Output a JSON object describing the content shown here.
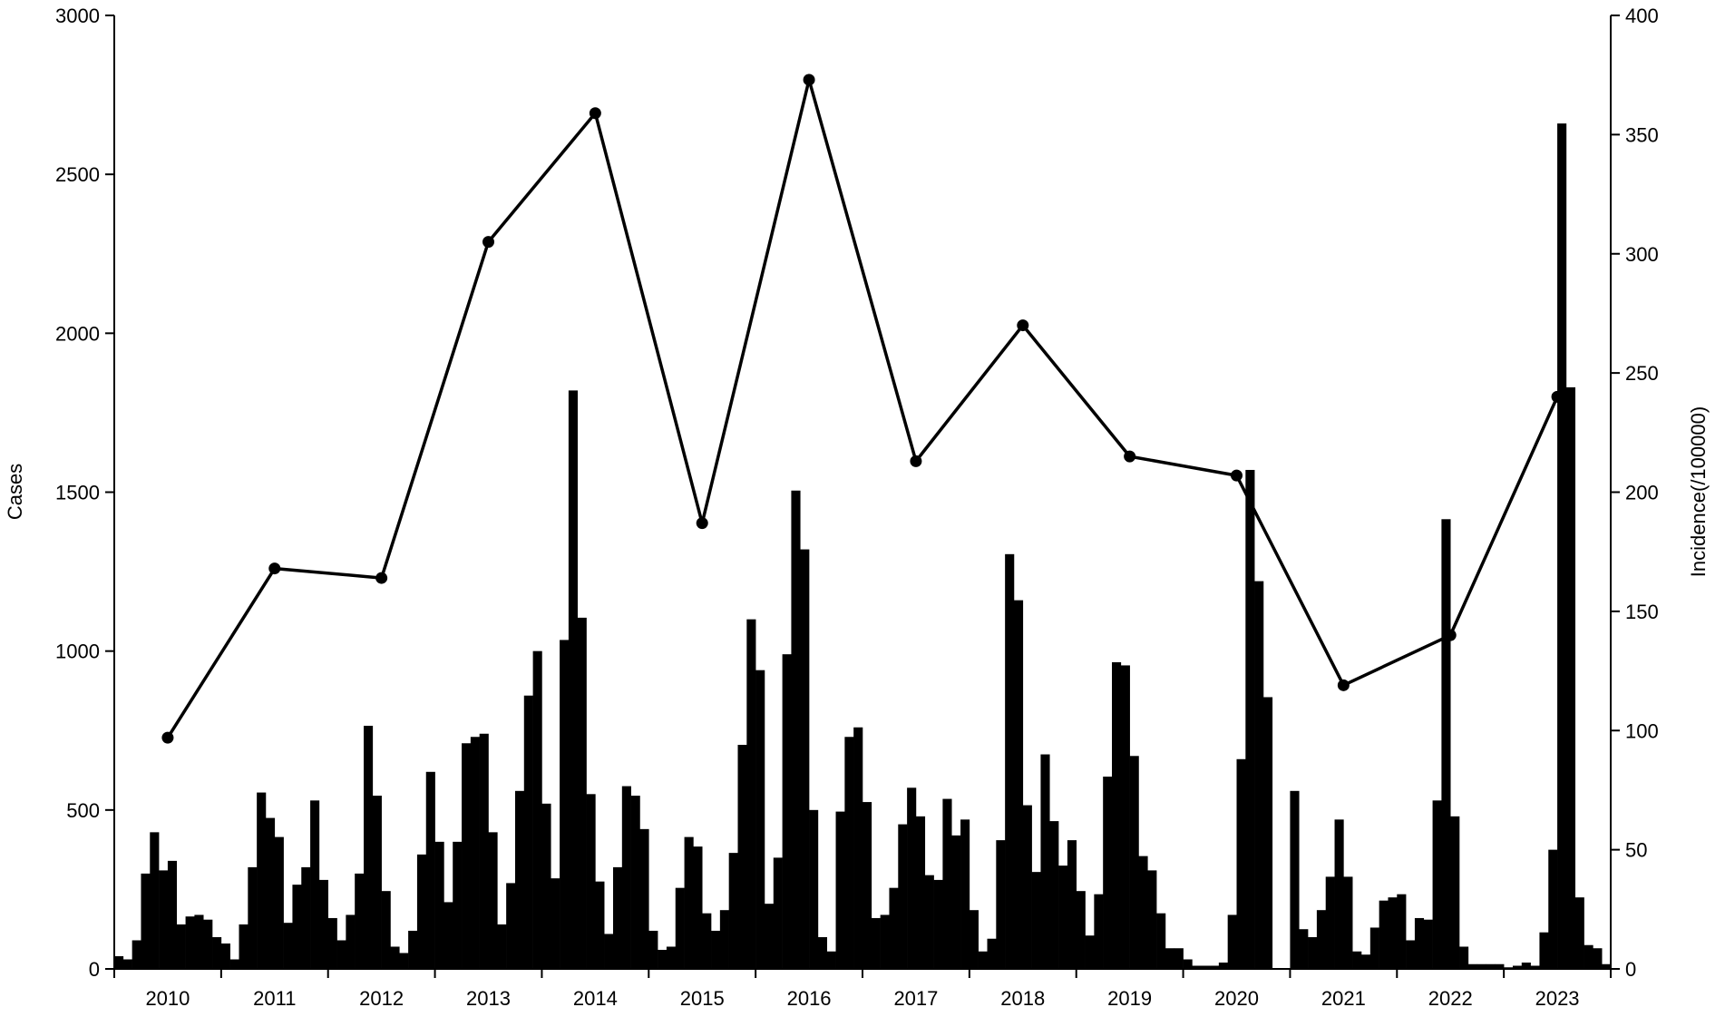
{
  "chart_data": {
    "type": "bar-line",
    "y_label": "Cases",
    "y2_label": "Incidence(/100000)",
    "categories": [
      "2010",
      "2011",
      "2012",
      "2013",
      "2014",
      "2015",
      "2016",
      "2017",
      "2018",
      "2019",
      "2020",
      "2021",
      "2022",
      "2023"
    ],
    "ylim": [
      0,
      3000
    ],
    "yticks": [
      0,
      500,
      1000,
      1500,
      2000,
      2500,
      3000
    ],
    "y2lim": [
      0,
      400
    ],
    "y2ticks": [
      0,
      50,
      100,
      150,
      200,
      250,
      300,
      350,
      400
    ],
    "series": [
      {
        "type": "bar",
        "color": "#000000",
        "values": [
          [
            40,
            30,
            90,
            300,
            430,
            310,
            340,
            140,
            165,
            170,
            155,
            100
          ],
          [
            80,
            30,
            140,
            320,
            555,
            475,
            415,
            145,
            265,
            320,
            530,
            280
          ],
          [
            160,
            90,
            170,
            300,
            765,
            545,
            245,
            70,
            50,
            120,
            360,
            620
          ],
          [
            400,
            210,
            400,
            710,
            730,
            740,
            430,
            140,
            270,
            560,
            860,
            1000
          ],
          [
            520,
            285,
            1035,
            1820,
            1105,
            550,
            275,
            110,
            320,
            575,
            545,
            440
          ],
          [
            120,
            60,
            70,
            255,
            415,
            385,
            175,
            120,
            185,
            365,
            705,
            1100
          ],
          [
            940,
            205,
            350,
            990,
            1505,
            1320,
            500,
            100,
            55,
            495,
            730,
            760
          ],
          [
            525,
            160,
            170,
            255,
            455,
            570,
            480,
            295,
            280,
            535,
            420,
            470
          ],
          [
            185,
            55,
            95,
            405,
            1305,
            1160,
            515,
            305,
            675,
            465,
            325,
            405
          ],
          [
            245,
            105,
            235,
            605,
            965,
            955,
            670,
            355,
            310,
            175,
            65,
            65
          ],
          [
            30,
            10,
            10,
            10,
            20,
            170,
            660,
            1570,
            1220,
            855,
            0,
            0
          ],
          [
            560,
            125,
            100,
            185,
            290,
            470,
            290,
            55,
            45,
            130,
            215,
            225
          ],
          [
            235,
            90,
            160,
            155,
            530,
            1415,
            480,
            70,
            15,
            15,
            15,
            15
          ],
          [
            5,
            10,
            20,
            10,
            115,
            375,
            2660,
            1830,
            225,
            75,
            65,
            15
          ]
        ]
      },
      {
        "type": "line",
        "axis": "y2",
        "color": "#000000",
        "values": [
          97,
          168,
          164,
          305,
          359,
          187,
          373,
          213,
          270,
          215,
          207,
          119,
          140,
          240
        ]
      }
    ]
  }
}
